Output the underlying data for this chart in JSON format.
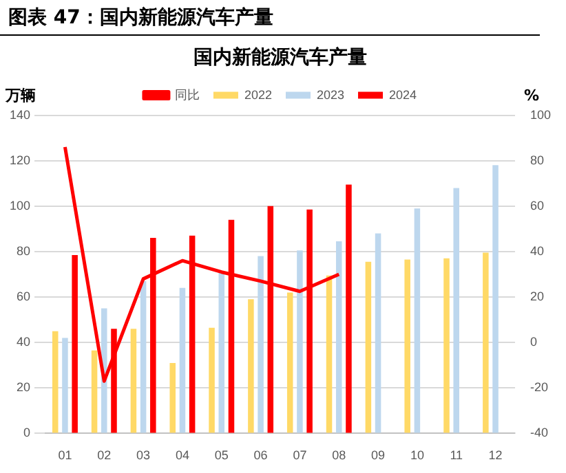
{
  "chart_data": {
    "type": "bar",
    "title": "图表 47：国内新能源汽车产量",
    "subtitle": "国内新能源汽车产量",
    "ylabel": "万辆",
    "y2label": "%",
    "categories": [
      "01",
      "02",
      "03",
      "04",
      "05",
      "06",
      "07",
      "08",
      "09",
      "10",
      "11",
      "12"
    ],
    "series": [
      {
        "name": "2022",
        "color": "#ffd966",
        "values": [
          45,
          36.5,
          46,
          31,
          46.5,
          59,
          62,
          69.5,
          75.5,
          76.5,
          77,
          79.5
        ]
      },
      {
        "name": "2023",
        "color": "#bdd7ee",
        "values": [
          42,
          55,
          67,
          64,
          71,
          78,
          80.5,
          84.5,
          88,
          99,
          108,
          118
        ]
      },
      {
        "name": "2024",
        "color": "#ff0000",
        "values": [
          78.5,
          46,
          86,
          87,
          94,
          100,
          98.5,
          109.5,
          null,
          null,
          null,
          null
        ]
      },
      {
        "name": "同比",
        "type": "line",
        "axis": "y2",
        "color": "#ff0000",
        "values": [
          86,
          -17,
          28,
          36,
          31,
          27,
          22.5,
          30,
          null,
          null,
          null,
          null
        ]
      }
    ],
    "ylim": [
      0,
      140
    ],
    "yticks": [
      0,
      20,
      40,
      60,
      80,
      100,
      120,
      140
    ],
    "y2lim": [
      -40,
      100
    ],
    "y2ticks": [
      -40,
      -20,
      0,
      20,
      40,
      60,
      80,
      100
    ],
    "grid": "y",
    "legend": "top",
    "marker": "none"
  }
}
